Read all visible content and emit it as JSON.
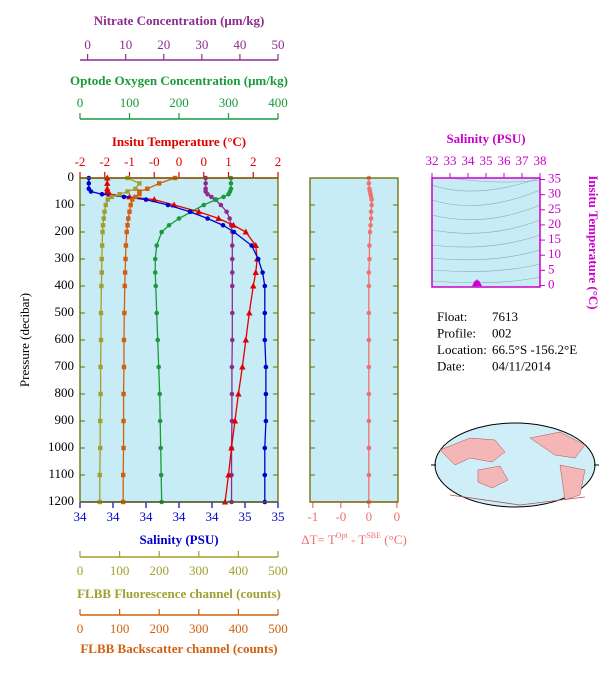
{
  "chart_data": [
    {
      "type": "profile",
      "y_label": "Pressure (decibar)",
      "ylim": [
        0,
        1200
      ],
      "y_inverted": true,
      "yticks": [
        0,
        100,
        200,
        300,
        400,
        500,
        600,
        700,
        800,
        900,
        1000,
        1100,
        1200
      ],
      "y": [
        0,
        20,
        40,
        50,
        60,
        70,
        80,
        100,
        125,
        150,
        175,
        200,
        250,
        300,
        350,
        400,
        500,
        600,
        700,
        800,
        900,
        1000,
        1100,
        1200
      ],
      "background": "#c8ecf5",
      "series": [
        {
          "name": "Nitrate Concentration (μm/kg)",
          "color": "#8e2c8e",
          "marker": "circle",
          "xlim": [
            -2,
            50
          ],
          "xticks": [
            0,
            10,
            20,
            30,
            40,
            50
          ],
          "values": [
            31,
            31,
            31,
            31,
            31.5,
            32.5,
            33.5,
            35,
            36.5,
            37.3,
            37.7,
            38,
            38,
            38,
            38,
            38,
            38,
            38,
            37.9,
            37.9,
            37.9,
            37.8,
            37.8,
            37.8
          ]
        },
        {
          "name": "Optode Oxygen Concentration (μm/kg)",
          "color": "#1a9a3a",
          "marker": "circle",
          "xlim": [
            0,
            400
          ],
          "xticks": [
            0,
            100,
            200,
            300,
            400
          ],
          "values": [
            305,
            305,
            305,
            303,
            300,
            290,
            275,
            250,
            225,
            200,
            180,
            165,
            155,
            152,
            152,
            153,
            155,
            157,
            159,
            161,
            162,
            163,
            164,
            165
          ]
        },
        {
          "name": "Insitu Temperature (°C)",
          "color": "#e00000",
          "marker": "triangle",
          "xlim": [
            -2,
            2
          ],
          "xticks": [
            -2,
            {
              "value": -1.5,
              "label": "-2"
            },
            -1,
            {
              "value": -0.5,
              "label": "-0"
            },
            0,
            {
              "value": 0.5,
              "label": "0"
            },
            1,
            {
              "value": 1.5,
              "label": "2"
            },
            2
          ],
          "values": [
            -1.45,
            -1.45,
            -1.45,
            -1.45,
            -1.4,
            -1.0,
            -0.5,
            -0.1,
            0.4,
            0.8,
            1.1,
            1.35,
            1.55,
            1.58,
            1.55,
            1.5,
            1.42,
            1.35,
            1.28,
            1.2,
            1.13,
            1.06,
            1.0,
            0.93
          ]
        },
        {
          "name": "Salinity (PSU)",
          "color": "#0000cc",
          "marker": "circle",
          "xlim": [
            33.8,
            34.7
          ],
          "xticks": [
            {
              "value": 33.8,
              "label": "34"
            },
            {
              "value": 33.95,
              "label": "34"
            },
            {
              "value": 34.1,
              "label": "34"
            },
            {
              "value": 34.25,
              "label": "34"
            },
            {
              "value": 34.4,
              "label": "34"
            },
            {
              "value": 34.55,
              "label": "35"
            },
            {
              "value": 34.7,
              "label": "35"
            }
          ],
          "values": [
            33.84,
            33.84,
            33.84,
            33.85,
            33.9,
            34.0,
            34.1,
            34.2,
            34.3,
            34.38,
            34.45,
            34.5,
            34.58,
            34.61,
            34.63,
            34.64,
            34.64,
            34.64,
            34.645,
            34.645,
            34.645,
            34.64,
            34.64,
            34.64
          ]
        },
        {
          "name": "FLBB Fluorescence channel (counts)",
          "color": "#a0a030",
          "marker": "square",
          "xlim": [
            0,
            500
          ],
          "xticks": [
            0,
            100,
            200,
            300,
            400,
            500
          ],
          "values": [
            120,
            150,
            140,
            120,
            100,
            80,
            70,
            65,
            62,
            60,
            58,
            57,
            56,
            55,
            55,
            54,
            53,
            53,
            52,
            52,
            51,
            51,
            50,
            50
          ]
        },
        {
          "name": "FLBB Backscatter channel (counts)",
          "color": "#d06010",
          "marker": "square",
          "xlim": [
            0,
            500
          ],
          "xticks": [
            0,
            100,
            200,
            300,
            400,
            500
          ],
          "values": [
            240,
            200,
            170,
            150,
            150,
            140,
            132,
            128,
            125,
            122,
            120,
            118,
            116,
            115,
            114,
            113,
            112,
            111,
            111,
            110,
            110,
            110,
            109,
            109
          ]
        }
      ]
    },
    {
      "type": "profile",
      "x_label": [
        "ΔT= T",
        "Opt",
        " - T",
        "SBE",
        " (°C)"
      ],
      "ylim": [
        0,
        1200
      ],
      "y_inverted": true,
      "yticks": [
        0,
        100,
        200,
        300,
        400,
        500,
        600,
        700,
        800,
        900,
        1000,
        1100,
        1200
      ],
      "y": [
        0,
        20,
        40,
        50,
        60,
        70,
        80,
        100,
        125,
        150,
        175,
        200,
        250,
        300,
        350,
        400,
        500,
        600,
        700,
        800,
        900,
        1000,
        1100,
        1200
      ],
      "background": "#c8ecf5",
      "series": [
        {
          "color": "#f07070",
          "marker": "circle",
          "xlim": [
            -1.05,
            0.52
          ],
          "xticks": [
            -1,
            {
              "value": -0.5,
              "label": "-0"
            },
            0,
            {
              "value": 0.5,
              "label": "0"
            }
          ],
          "values": [
            0,
            0,
            0.01,
            0.02,
            0.03,
            0.04,
            0.05,
            0.05,
            0.04,
            0.04,
            0.03,
            0.02,
            0.01,
            0.01,
            0,
            0,
            0,
            0,
            0,
            0,
            0,
            0,
            0,
            0
          ]
        }
      ]
    },
    {
      "type": "scatter",
      "title": "Salinity (PSU)",
      "y_label": "Insitu Temperature (°C)",
      "color": "#cc00cc",
      "xlim": [
        32,
        38
      ],
      "xticks": [
        32,
        33,
        34,
        35,
        36,
        37,
        38
      ],
      "ylim": [
        -0.5,
        35.5
      ],
      "yticks": [
        0,
        5,
        10,
        15,
        20,
        25,
        30,
        35
      ],
      "x": [
        34.4,
        34.5,
        34.6
      ],
      "values": [
        0.6,
        1.0,
        0.6
      ]
    },
    {
      "type": "info",
      "rows": [
        {
          "label": "Float:",
          "value": "7613"
        },
        {
          "label": "Profile:",
          "value": "002"
        },
        {
          "label": "Location:",
          "value": "66.5°S  -156.2°E"
        },
        {
          "label": "Date:",
          "value": "04/11/2014"
        }
      ]
    }
  ]
}
